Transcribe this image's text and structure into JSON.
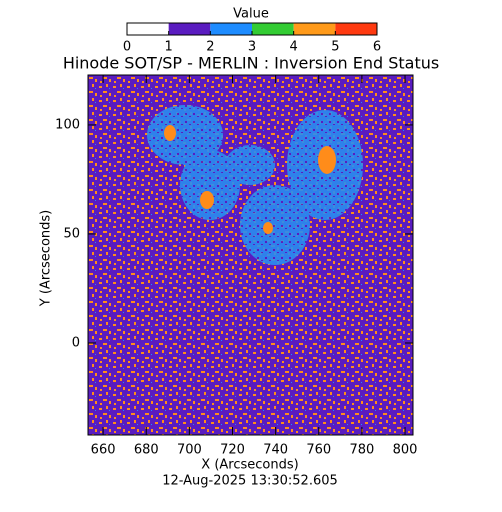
{
  "chart_data": {
    "type": "image",
    "title": "Hinode SOT/SP - MERLIN : Inversion End Status",
    "x_label": "X (Arcseconds)",
    "y_label": "Y (Arcseconds)",
    "timestamp": "12-Aug-2025 13:30:52.605",
    "xlim": [
      653,
      803.7
    ],
    "ylim": [
      -42.2,
      122.9
    ],
    "xticks": [
      660,
      680,
      700,
      720,
      740,
      760,
      780,
      800
    ],
    "yticks": [
      0,
      50,
      100
    ],
    "colorbar": {
      "label": "Value",
      "lim": [
        0,
        6
      ],
      "ticks": [
        0,
        1,
        2,
        3,
        4,
        5,
        6
      ],
      "colors": [
        "#ffffff",
        "#5a1cc0",
        "#1e8cff",
        "#33cc33",
        "#ff9a1a",
        "#ff3a10"
      ]
    }
  }
}
